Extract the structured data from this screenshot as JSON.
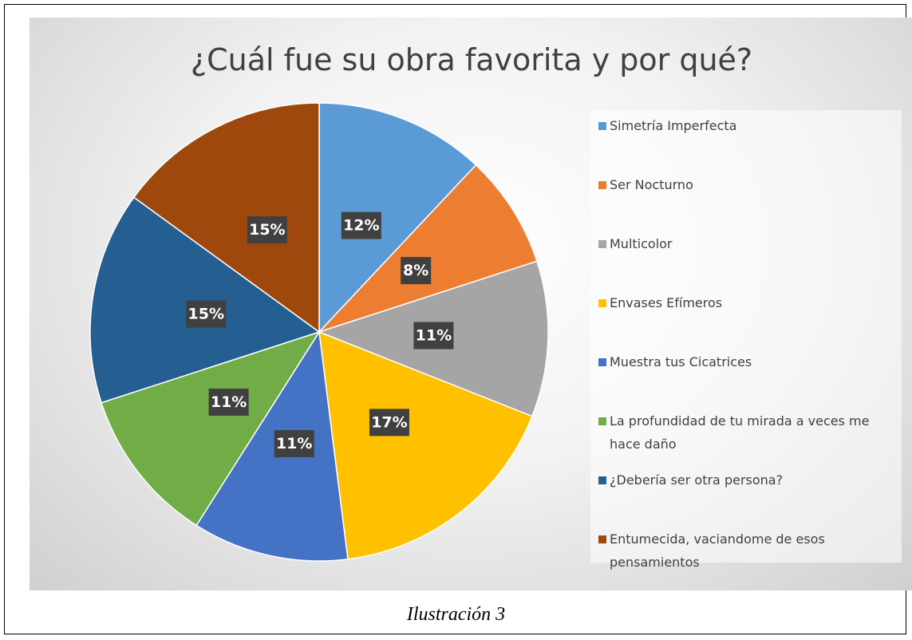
{
  "chart_data": {
    "type": "pie",
    "title": "¿Cuál fue su obra favorita y por qué?",
    "categories": [
      "Simetría Imperfecta",
      "Ser Nocturno",
      "Multicolor",
      "Envases Efímeros",
      "Muestra tus Cicatrices",
      "La profundidad de tu mirada a veces me hace daño",
      "¿Debería ser otra persona?",
      "Entumecida, vaciandome de esos pensamientos"
    ],
    "values": [
      12,
      8,
      11,
      17,
      11,
      11,
      15,
      15
    ],
    "value_labels": [
      "12%",
      "8%",
      "11%",
      "17%",
      "11%",
      "11%",
      "15%",
      "15%"
    ],
    "colors": [
      "#5b9bd5",
      "#ed7d31",
      "#a5a5a5",
      "#ffc000",
      "#4472c4",
      "#70ad47",
      "#255e91",
      "#9e480e"
    ],
    "legend": "right"
  },
  "caption": "Ilustración 3"
}
